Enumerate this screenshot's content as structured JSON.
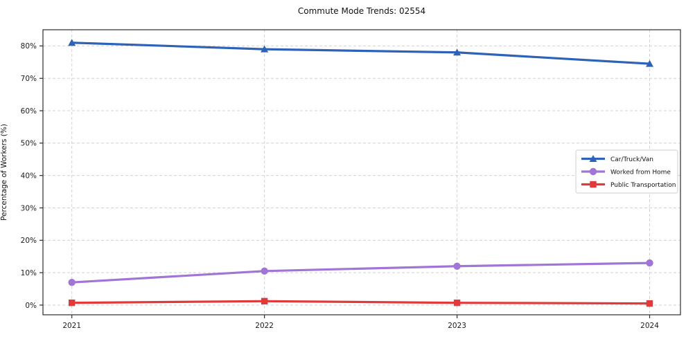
{
  "title": "Commute Mode Trends: 02554",
  "chart_data": {
    "type": "line",
    "title": "Commute Mode Trends: 02554",
    "xlabel": "",
    "ylabel": "Percentage of Workers (%)",
    "x": [
      2021,
      2022,
      2023,
      2024
    ],
    "x_tick_labels": [
      "2021",
      "2022",
      "2023",
      "2024"
    ],
    "yticks": [
      0,
      10,
      20,
      30,
      40,
      50,
      60,
      70,
      80
    ],
    "ytick_labels": [
      "0%",
      "10%",
      "20%",
      "30%",
      "40%",
      "50%",
      "60%",
      "70%",
      "80%"
    ],
    "ylim": [
      -3,
      85
    ],
    "xlim": [
      2020.85,
      2024.16
    ],
    "grid": true,
    "legend_position": "center right",
    "series": [
      {
        "name": "Car/Truck/Van",
        "marker": "triangle",
        "color": "#2e62b8",
        "values": [
          81,
          79,
          78,
          74.5
        ]
      },
      {
        "name": "Worked from Home",
        "marker": "circle",
        "color": "#a175d6",
        "values": [
          7,
          10.5,
          12,
          13
        ]
      },
      {
        "name": "Public Transportation",
        "marker": "square",
        "color": "#e23a3a",
        "values": [
          0.7,
          1.2,
          0.7,
          0.5
        ]
      }
    ]
  },
  "colors": {
    "grid": "#c9c9c9",
    "axis": "#2b2b2b",
    "tick_label": "#1a1a1a",
    "legend_border": "#cccccc",
    "background": "#ffffff"
  }
}
